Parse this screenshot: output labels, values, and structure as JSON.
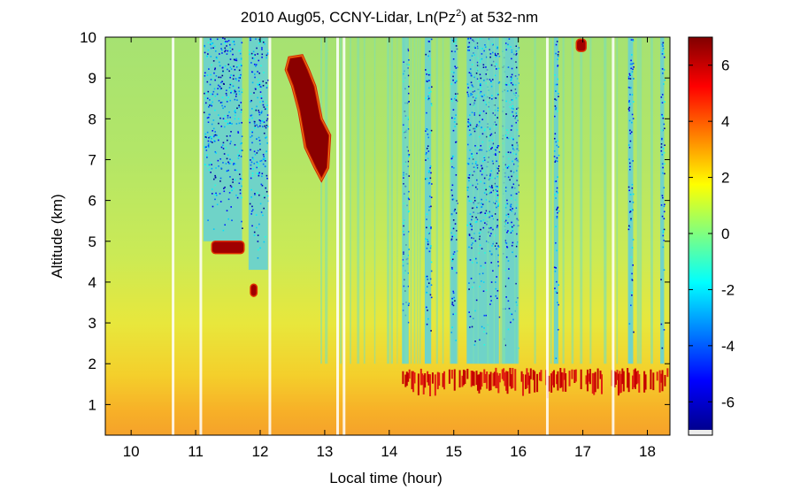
{
  "chart_data": {
    "type": "heatmap",
    "title": "2010 Aug05, CCNY-Lidar, Ln(Pz",
    "title_sup": "2",
    "title_tail": ") at 532-nm",
    "xlabel": "Local time (hour)",
    "ylabel": "Altitude (km)",
    "xlim": [
      9.6,
      18.35
    ],
    "ylim": [
      0.25,
      10
    ],
    "x_ticks": [
      10,
      11,
      12,
      13,
      14,
      15,
      16,
      17,
      18
    ],
    "y_ticks": [
      1,
      2,
      3,
      4,
      5,
      6,
      7,
      8,
      9,
      10
    ],
    "colorbar": {
      "range": [
        -7,
        7
      ],
      "ticks": [
        -6,
        -4,
        -2,
        0,
        2,
        4,
        6
      ],
      "colormap": "jet"
    },
    "data_gaps_hours": [
      10.65,
      11.08,
      12.15,
      13.2,
      13.3,
      16.45,
      17.47
    ],
    "boundary_layer_top_km": 1.8,
    "clouds": [
      {
        "time_start": 11.25,
        "time_end": 11.75,
        "altitude_km": 4.85,
        "ln_pz2": 5
      },
      {
        "time_start": 12.4,
        "time_end": 13.05,
        "altitude_km_bottom": 6.5,
        "altitude_km_top": 9.5,
        "ln_pz2": 6.5
      },
      {
        "time_start": 11.85,
        "time_end": 11.95,
        "altitude_km": 3.8,
        "ln_pz2": 5
      },
      {
        "time_start": 16.9,
        "time_end": 17.05,
        "altitude_km": 9.8,
        "ln_pz2": 6
      }
    ],
    "grid": false
  }
}
